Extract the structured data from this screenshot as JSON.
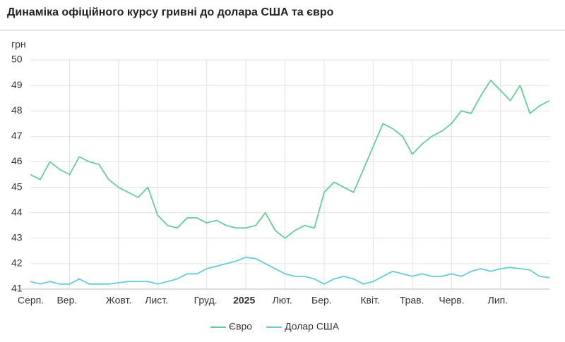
{
  "chart_data": {
    "type": "line",
    "title": "Динаміка офіційного курсу гривні до долара США та євро",
    "y_label": "грн",
    "categories": [
      "Серп.",
      null,
      null,
      null,
      "Вер.",
      null,
      null,
      null,
      null,
      "Жовт.",
      null,
      null,
      null,
      "Лист.",
      null,
      null,
      null,
      null,
      "Груд.",
      null,
      null,
      null,
      "2025",
      null,
      null,
      null,
      "Лют.",
      null,
      null,
      null,
      "Бер.",
      null,
      null,
      null,
      null,
      "Квіт.",
      null,
      null,
      null,
      "Трав.",
      null,
      null,
      null,
      "Черв.",
      null,
      null,
      null,
      null,
      "Лип.",
      null,
      null,
      null,
      null,
      null
    ],
    "series": [
      {
        "name": "Євро",
        "color": "#66cc99",
        "values": [
          45.5,
          45.3,
          46.0,
          45.7,
          45.5,
          46.2,
          46.0,
          45.9,
          45.3,
          45.0,
          44.8,
          44.6,
          45.0,
          43.9,
          43.5,
          43.4,
          43.8,
          43.8,
          43.6,
          43.7,
          43.5,
          43.4,
          43.4,
          43.5,
          44.0,
          43.3,
          43.0,
          43.3,
          43.5,
          43.4,
          44.8,
          45.2,
          45.0,
          44.8,
          45.7,
          46.6,
          47.5,
          47.3,
          47.0,
          46.3,
          46.7,
          47.0,
          47.2,
          47.5,
          48.0,
          47.9,
          48.6,
          49.2,
          48.8,
          48.4,
          49.0,
          47.9,
          48.2,
          48.4
        ]
      },
      {
        "name": "Долар США",
        "color": "#66ccd6",
        "values": [
          41.3,
          41.2,
          41.3,
          41.2,
          41.2,
          41.4,
          41.2,
          41.2,
          41.2,
          41.25,
          41.3,
          41.3,
          41.3,
          41.2,
          41.3,
          41.4,
          41.6,
          41.6,
          41.8,
          41.9,
          42.0,
          42.1,
          42.25,
          42.2,
          42.0,
          41.8,
          41.6,
          41.5,
          41.5,
          41.4,
          41.2,
          41.4,
          41.5,
          41.4,
          41.2,
          41.3,
          41.5,
          41.7,
          41.6,
          41.5,
          41.6,
          41.5,
          41.5,
          41.6,
          41.5,
          41.7,
          41.8,
          41.7,
          41.8,
          41.85,
          41.8,
          41.75,
          41.5,
          41.45
        ]
      }
    ],
    "ylim": [
      41,
      50
    ],
    "yticks": [
      41,
      42,
      43,
      44,
      45,
      46,
      47,
      48,
      49,
      50
    ],
    "grid": true,
    "legend": "bottom"
  }
}
